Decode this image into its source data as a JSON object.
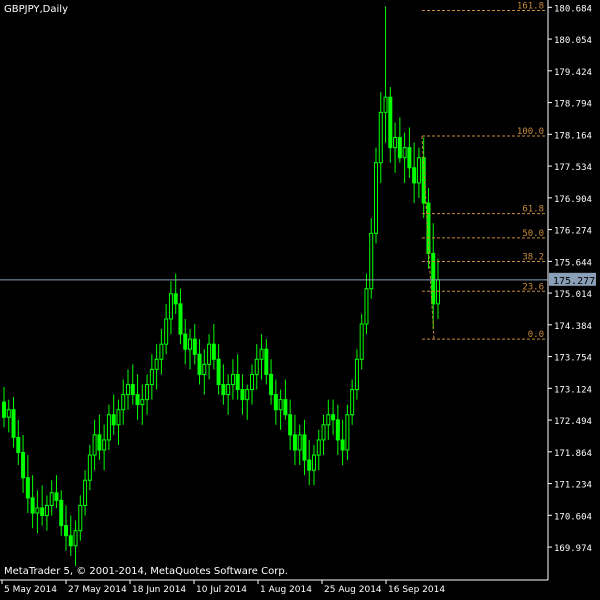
{
  "window": {
    "title": "GBPJPY,Daily",
    "copyright": "MetaTrader 5, © 2001-2014, MetaQuotes Software Corp."
  },
  "colors": {
    "background": "#000000",
    "candle": "#00ff00",
    "wick": "#00ff00",
    "fib_line": "#c88a3c",
    "fib_label": "#c88a3c",
    "price_line": "#8aa0b8",
    "price_badge_bg": "#8aa0b8",
    "text": "#ffffff",
    "axis_line": "#ffffff"
  },
  "price_axis": {
    "labels": [
      "180.684",
      "180.054",
      "179.424",
      "178.794",
      "178.164",
      "177.534",
      "176.904",
      "176.274",
      "175.644",
      "175.014",
      "174.384",
      "173.754",
      "173.124",
      "172.494",
      "171.864",
      "171.234",
      "170.604",
      "169.974"
    ],
    "current_price": "175.277"
  },
  "time_axis": {
    "labels": [
      "5 May 2014",
      "27 May 2014",
      "18 Jun 2014",
      "10 Jul 2014",
      "1 Aug 2014",
      "25 Aug 2014",
      "16 Sep 2014"
    ]
  },
  "fibonacci": {
    "levels": [
      {
        "label": "161.8",
        "price": 180.62
      },
      {
        "label": "100.0",
        "price": 178.13
      },
      {
        "label": "61.8",
        "price": 176.59
      },
      {
        "label": "50.0",
        "price": 176.11
      },
      {
        "label": "38.2",
        "price": 175.64
      },
      {
        "label": "23.6",
        "price": 175.05
      },
      {
        "label": "0.0",
        "price": 174.1
      }
    ]
  },
  "chart_data": {
    "type": "candlestick",
    "symbol": "GBPJPY",
    "timeframe": "Daily",
    "ylim": [
      169.4,
      180.75
    ],
    "candles": [
      [
        172.85,
        173.15,
        172.35,
        172.55
      ],
      [
        172.55,
        172.9,
        172.25,
        172.7
      ],
      [
        172.7,
        172.95,
        171.95,
        172.15
      ],
      [
        172.15,
        172.5,
        171.6,
        171.85
      ],
      [
        171.85,
        172.2,
        171.05,
        171.35
      ],
      [
        171.35,
        171.8,
        170.65,
        170.95
      ],
      [
        170.95,
        171.4,
        170.35,
        170.65
      ],
      [
        170.65,
        171.1,
        170.25,
        170.75
      ],
      [
        170.75,
        171.2,
        170.4,
        170.6
      ],
      [
        170.6,
        171.0,
        170.3,
        170.8
      ],
      [
        170.8,
        171.3,
        170.6,
        171.05
      ],
      [
        171.05,
        171.4,
        170.75,
        170.9
      ],
      [
        170.9,
        171.1,
        170.2,
        170.4
      ],
      [
        170.4,
        170.8,
        169.9,
        170.2
      ],
      [
        170.2,
        170.6,
        169.8,
        170.0
      ],
      [
        170.0,
        170.5,
        169.6,
        170.3
      ],
      [
        170.3,
        171.0,
        170.1,
        170.8
      ],
      [
        170.8,
        171.5,
        170.6,
        171.3
      ],
      [
        171.3,
        172.0,
        171.1,
        171.8
      ],
      [
        171.8,
        172.5,
        171.5,
        172.2
      ],
      [
        172.2,
        172.6,
        171.7,
        171.9
      ],
      [
        171.9,
        172.4,
        171.5,
        172.1
      ],
      [
        172.1,
        172.8,
        171.9,
        172.6
      ],
      [
        172.6,
        173.0,
        172.2,
        172.4
      ],
      [
        172.4,
        172.9,
        172.0,
        172.7
      ],
      [
        172.7,
        173.3,
        172.4,
        173.0
      ],
      [
        173.0,
        173.5,
        172.7,
        173.2
      ],
      [
        173.2,
        173.6,
        172.8,
        173.0
      ],
      [
        173.0,
        173.4,
        172.5,
        172.8
      ],
      [
        172.8,
        173.2,
        172.4,
        172.9
      ],
      [
        172.9,
        173.4,
        172.6,
        173.2
      ],
      [
        173.2,
        173.8,
        172.9,
        173.5
      ],
      [
        173.5,
        174.0,
        173.1,
        173.7
      ],
      [
        173.7,
        174.3,
        173.4,
        174.0
      ],
      [
        174.0,
        174.8,
        173.8,
        174.5
      ],
      [
        174.5,
        175.25,
        174.2,
        175.0
      ],
      [
        175.0,
        175.4,
        174.6,
        174.8
      ],
      [
        174.8,
        175.1,
        174.0,
        174.2
      ],
      [
        174.2,
        174.5,
        173.6,
        173.9
      ],
      [
        173.9,
        174.3,
        173.5,
        174.1
      ],
      [
        174.1,
        174.4,
        173.6,
        173.8
      ],
      [
        173.8,
        174.1,
        173.2,
        173.4
      ],
      [
        173.4,
        173.9,
        173.0,
        173.6
      ],
      [
        173.6,
        174.2,
        173.3,
        174.0
      ],
      [
        174.0,
        174.4,
        173.5,
        173.7
      ],
      [
        173.7,
        174.0,
        173.0,
        173.2
      ],
      [
        173.2,
        173.6,
        172.8,
        173.0
      ],
      [
        173.0,
        173.4,
        172.6,
        173.2
      ],
      [
        173.2,
        173.7,
        172.9,
        173.4
      ],
      [
        173.4,
        173.8,
        172.9,
        173.1
      ],
      [
        173.1,
        173.4,
        172.6,
        172.9
      ],
      [
        172.9,
        173.2,
        172.5,
        173.1
      ],
      [
        173.1,
        173.6,
        172.8,
        173.4
      ],
      [
        173.4,
        174.0,
        173.1,
        173.7
      ],
      [
        173.7,
        174.2,
        173.3,
        173.9
      ],
      [
        173.9,
        174.1,
        173.2,
        173.4
      ],
      [
        173.4,
        173.7,
        172.8,
        173.0
      ],
      [
        173.0,
        173.3,
        172.4,
        172.7
      ],
      [
        172.7,
        173.1,
        172.3,
        172.9
      ],
      [
        172.9,
        173.3,
        172.5,
        172.6
      ],
      [
        172.6,
        172.9,
        171.9,
        172.2
      ],
      [
        172.2,
        172.6,
        171.6,
        171.9
      ],
      [
        171.9,
        172.4,
        171.6,
        172.2
      ],
      [
        172.2,
        172.5,
        171.4,
        171.7
      ],
      [
        171.7,
        172.1,
        171.2,
        171.5
      ],
      [
        171.5,
        172.0,
        171.2,
        171.8
      ],
      [
        171.8,
        172.3,
        171.5,
        172.1
      ],
      [
        172.1,
        172.6,
        171.8,
        172.4
      ],
      [
        172.4,
        172.9,
        172.1,
        172.6
      ],
      [
        172.6,
        172.9,
        172.2,
        172.5
      ],
      [
        172.5,
        172.8,
        171.8,
        172.1
      ],
      [
        172.1,
        172.5,
        171.6,
        171.9
      ],
      [
        171.9,
        172.8,
        171.7,
        172.6
      ],
      [
        172.6,
        173.3,
        172.4,
        173.1
      ],
      [
        173.1,
        173.9,
        172.9,
        173.7
      ],
      [
        173.7,
        174.6,
        173.5,
        174.4
      ],
      [
        174.4,
        175.4,
        174.2,
        175.1
      ],
      [
        175.1,
        176.5,
        174.9,
        176.2
      ],
      [
        176.2,
        177.9,
        176.0,
        177.6
      ],
      [
        177.6,
        179.0,
        177.2,
        178.6
      ],
      [
        178.6,
        180.7,
        178.0,
        178.9
      ],
      [
        178.9,
        179.1,
        177.6,
        177.9
      ],
      [
        177.9,
        178.4,
        177.4,
        178.1
      ],
      [
        178.1,
        178.5,
        177.6,
        177.7
      ],
      [
        177.7,
        178.2,
        177.2,
        177.9
      ],
      [
        177.9,
        178.3,
        177.3,
        177.5
      ],
      [
        177.5,
        178.0,
        176.8,
        177.2
      ],
      [
        177.2,
        177.9,
        176.9,
        177.7
      ],
      [
        177.7,
        178.1,
        176.5,
        176.8
      ],
      [
        176.8,
        177.1,
        175.5,
        175.8
      ],
      [
        175.8,
        176.4,
        174.3,
        174.8
      ],
      [
        174.8,
        175.7,
        174.5,
        175.277
      ]
    ]
  }
}
